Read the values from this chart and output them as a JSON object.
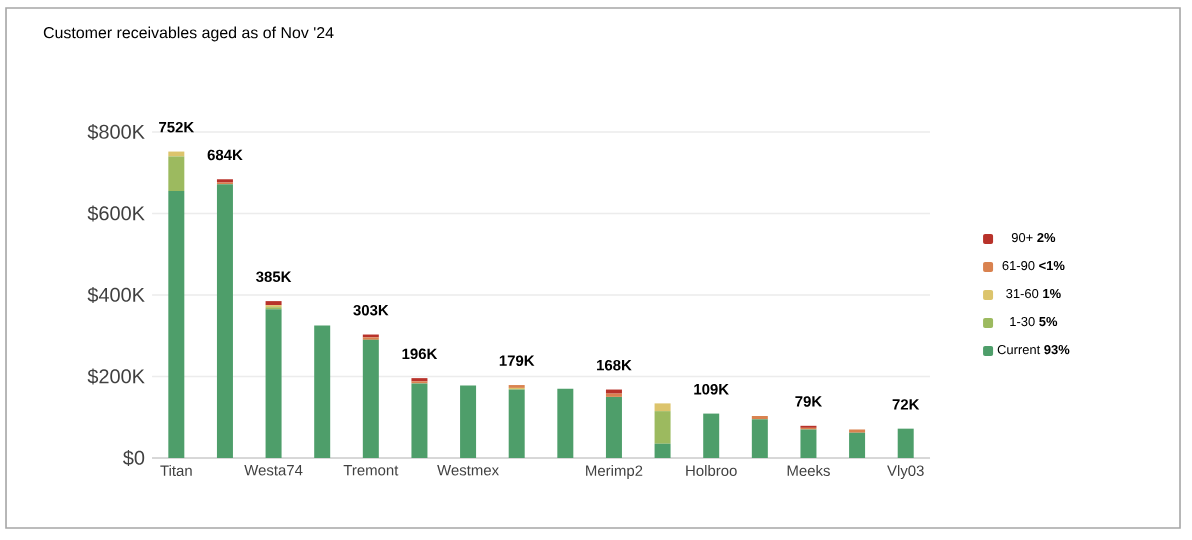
{
  "chart_data": {
    "type": "bar",
    "title": "Customer receivables aged as of Nov '24",
    "categories": [
      "Titan",
      null,
      "Westa74",
      null,
      "Tremont",
      null,
      "Westmex",
      null,
      null,
      "Merimp2",
      null,
      "Holbroo",
      null,
      "Meeks",
      null,
      "Vly03"
    ],
    "stacked": true,
    "series": [
      {
        "name": "Current  **93%**",
        "color": "#4e9e6a",
        "values": [
          655000,
          672000,
          365000,
          325000,
          290000,
          183000,
          178000,
          168000,
          170000,
          150000,
          35000,
          109000,
          95000,
          70000,
          62000,
          72000
        ]
      },
      {
        "name": "1-30  **5%**",
        "color": "#9cba5f",
        "values": [
          85000,
          null,
          5000,
          null,
          null,
          null,
          null,
          null,
          null,
          null,
          80000,
          null,
          null,
          null,
          null,
          null
        ]
      },
      {
        "name": "31-60  **1%**",
        "color": "#dcc46c",
        "values": [
          12000,
          null,
          5000,
          null,
          null,
          null,
          null,
          4000,
          null,
          null,
          19000,
          null,
          null,
          null,
          null,
          null
        ]
      },
      {
        "name": "61-90  **<1%**",
        "color": "#d9824f",
        "values": [
          null,
          4000,
          null,
          null,
          6000,
          5000,
          null,
          7000,
          null,
          8000,
          null,
          null,
          8000,
          4000,
          8000,
          null
        ]
      },
      {
        "name": "90+  **2%**",
        "color": "#b8322a",
        "values": [
          null,
          8000,
          10000,
          null,
          7000,
          8000,
          null,
          null,
          null,
          10000,
          null,
          null,
          null,
          5000,
          null,
          null
        ]
      }
    ],
    "totals": [
      "752K",
      "684K",
      "385K",
      null,
      "303K",
      "196K",
      null,
      "179K",
      null,
      "168K",
      null,
      "109K",
      null,
      "79K",
      null,
      "72K"
    ],
    "ylim": [
      0,
      800000
    ],
    "yticks": [
      {
        "value": 0,
        "label": "$0"
      },
      {
        "value": 200000,
        "label": "$200K"
      },
      {
        "value": 400000,
        "label": "$400K"
      },
      {
        "value": 600000,
        "label": "$600K"
      },
      {
        "value": 800000,
        "label": "$800K"
      }
    ],
    "grid": "y",
    "legend": "right"
  }
}
